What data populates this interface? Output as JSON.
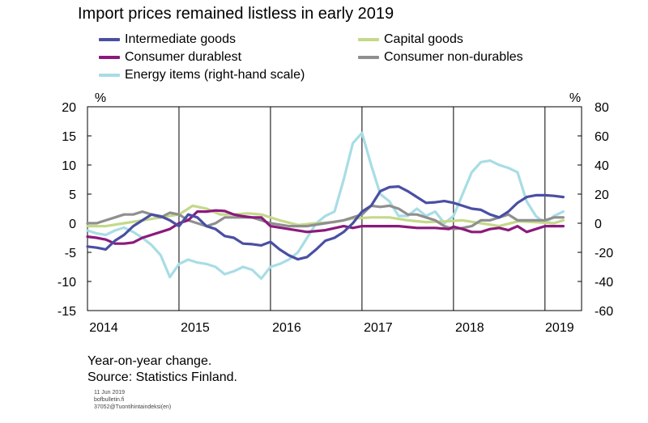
{
  "chart_data": {
    "type": "line",
    "title": "Import prices remained listless in early 2019",
    "left_axis": {
      "unit": "%",
      "range": [
        -15,
        20
      ],
      "ticks": [
        "20",
        "15",
        "10",
        "5",
        "0",
        "-5",
        "-10",
        "-15"
      ]
    },
    "right_axis": {
      "unit": "%",
      "range": [
        -60,
        80
      ],
      "ticks": [
        "80",
        "60",
        "40",
        "20",
        "0",
        "-20",
        "-40",
        "-60"
      ]
    },
    "x_range": [
      2014,
      2019.4
    ],
    "x_ticks": [
      "2014",
      "2015",
      "2016",
      "2017",
      "2018",
      "2019"
    ],
    "grid": "vertical lines at each year",
    "legend_position": "top, two columns",
    "series": [
      {
        "name": "Intermediate goods",
        "color": "#4a4fa3",
        "axis": "left",
        "x": [
          2014.0,
          2014.1,
          2014.2,
          2014.3,
          2014.4,
          2014.5,
          2014.6,
          2014.7,
          2014.8,
          2014.9,
          2015.0,
          2015.1,
          2015.2,
          2015.3,
          2015.4,
          2015.5,
          2015.6,
          2015.7,
          2015.8,
          2015.9,
          2016.0,
          2016.1,
          2016.2,
          2016.3,
          2016.4,
          2016.5,
          2016.6,
          2016.7,
          2016.8,
          2016.9,
          2017.0,
          2017.1,
          2017.2,
          2017.3,
          2017.4,
          2017.5,
          2017.6,
          2017.7,
          2017.8,
          2017.9,
          2018.0,
          2018.1,
          2018.2,
          2018.3,
          2018.4,
          2018.5,
          2018.6,
          2018.7,
          2018.8,
          2018.9,
          2019.0,
          2019.1,
          2019.2
        ],
        "y": [
          -4,
          -4.2,
          -4.5,
          -3,
          -2,
          -0.5,
          0.5,
          1.5,
          1.2,
          0.5,
          -0.5,
          1.5,
          1,
          -0.5,
          -1,
          -2.2,
          -2.5,
          -3.5,
          -3.6,
          -3.8,
          -3.2,
          -4.5,
          -5.5,
          -6.2,
          -5.8,
          -4.5,
          -3,
          -2.5,
          -1.5,
          0,
          2,
          3,
          5.5,
          6.2,
          6.3,
          5.5,
          4.5,
          3.5,
          3.6,
          3.8,
          3.5,
          3,
          2.5,
          2.3,
          1.5,
          1,
          2,
          3.5,
          4.5,
          4.8,
          4.8,
          4.7,
          4.5
        ]
      },
      {
        "name": "Capital goods",
        "color": "#c4d98a",
        "axis": "left",
        "x": [
          2014.0,
          2014.2,
          2014.4,
          2014.6,
          2014.8,
          2015.0,
          2015.15,
          2015.3,
          2015.45,
          2015.6,
          2015.75,
          2015.9,
          2016.1,
          2016.3,
          2016.5,
          2016.7,
          2016.9,
          2017.1,
          2017.3,
          2017.5,
          2017.7,
          2017.9,
          2018.1,
          2018.3,
          2018.5,
          2018.7,
          2018.9,
          2019.1,
          2019.2
        ],
        "y": [
          -0.5,
          -0.5,
          0,
          0.5,
          1,
          1.5,
          3,
          2.5,
          1.5,
          1.5,
          1.7,
          1.5,
          0.5,
          -0.3,
          0,
          0.2,
          0.8,
          1,
          1,
          0.5,
          0.2,
          0.3,
          0.5,
          0,
          -0.5,
          0.3,
          0.2,
          0,
          0.5
        ]
      },
      {
        "name": "Consumer durablest",
        "color": "#8b1a7b",
        "axis": "left",
        "x": [
          2014.0,
          2014.1,
          2014.2,
          2014.3,
          2014.4,
          2014.5,
          2014.6,
          2014.7,
          2014.8,
          2014.9,
          2015.0,
          2015.1,
          2015.2,
          2015.3,
          2015.4,
          2015.5,
          2015.6,
          2015.7,
          2015.8,
          2015.9,
          2016.0,
          2016.2,
          2016.4,
          2016.6,
          2016.8,
          2016.9,
          2017.0,
          2017.2,
          2017.4,
          2017.6,
          2017.8,
          2017.95,
          2018.0,
          2018.1,
          2018.2,
          2018.3,
          2018.4,
          2018.5,
          2018.6,
          2018.7,
          2018.8,
          2018.9,
          2019.0,
          2019.1,
          2019.2
        ],
        "y": [
          -2.3,
          -2.5,
          -2.8,
          -3.5,
          -3.5,
          -3.3,
          -2.5,
          -2,
          -1.5,
          -1,
          0,
          0.5,
          2,
          2,
          2.2,
          2.1,
          1.5,
          1.2,
          1,
          1,
          -0.5,
          -1,
          -1.5,
          -1.2,
          -0.5,
          -0.8,
          -0.5,
          -0.5,
          -0.5,
          -0.8,
          -0.8,
          -1,
          -0.6,
          -1,
          -1.5,
          -1.5,
          -1,
          -0.8,
          -1.2,
          -0.5,
          -1.5,
          -1,
          -0.5,
          -0.5,
          -0.5
        ]
      },
      {
        "name": "Consumer non-durables",
        "color": "#8f8f8f",
        "axis": "left",
        "x": [
          2014.0,
          2014.1,
          2014.2,
          2014.3,
          2014.4,
          2014.5,
          2014.6,
          2014.7,
          2014.8,
          2014.9,
          2015.0,
          2015.1,
          2015.2,
          2015.3,
          2015.4,
          2015.5,
          2015.6,
          2015.7,
          2015.8,
          2015.9,
          2016.0,
          2016.2,
          2016.4,
          2016.6,
          2016.8,
          2017.0,
          2017.1,
          2017.2,
          2017.3,
          2017.4,
          2017.5,
          2017.6,
          2017.7,
          2017.8,
          2017.9,
          2018.0,
          2018.1,
          2018.2,
          2018.3,
          2018.4,
          2018.5,
          2018.6,
          2018.7,
          2018.8,
          2018.9,
          2019.0,
          2019.1,
          2019.2
        ],
        "y": [
          0,
          0,
          0.5,
          1,
          1.5,
          1.5,
          2,
          1.5,
          1,
          1.8,
          1.5,
          0.5,
          0,
          -0.5,
          0,
          1,
          1,
          1,
          1,
          0.5,
          0,
          -0.5,
          -0.5,
          0,
          0.5,
          1.5,
          3,
          2.8,
          3,
          2.5,
          1.5,
          1.5,
          1,
          0.5,
          -0.5,
          -1,
          -0.8,
          -0.5,
          0.5,
          0.5,
          1,
          1.5,
          0.5,
          0.5,
          0.5,
          0.5,
          1,
          1
        ]
      },
      {
        "name": "Energy items (right-hand scale)",
        "color": "#a8dde5",
        "axis": "right",
        "x": [
          2014.0,
          2014.1,
          2014.2,
          2014.3,
          2014.4,
          2014.5,
          2014.6,
          2014.7,
          2014.8,
          2014.9,
          2015.0,
          2015.1,
          2015.2,
          2015.3,
          2015.4,
          2015.5,
          2015.6,
          2015.7,
          2015.8,
          2015.9,
          2016.0,
          2016.1,
          2016.2,
          2016.3,
          2016.4,
          2016.5,
          2016.6,
          2016.7,
          2016.8,
          2016.9,
          2017.0,
          2017.1,
          2017.2,
          2017.3,
          2017.4,
          2017.5,
          2017.6,
          2017.7,
          2017.8,
          2017.9,
          2018.0,
          2018.1,
          2018.2,
          2018.3,
          2018.4,
          2018.5,
          2018.6,
          2018.7,
          2018.8,
          2018.9,
          2019.0,
          2019.1,
          2019.2
        ],
        "y": [
          -5,
          -7,
          -8,
          -5,
          -3,
          -6,
          -10,
          -15,
          -22,
          -37,
          -28,
          -25,
          -27,
          -28,
          -30,
          -35,
          -33,
          -30,
          -32,
          -38,
          -30,
          -28,
          -25,
          -20,
          -10,
          0,
          5,
          8,
          30,
          55,
          62,
          40,
          20,
          15,
          5,
          5,
          10,
          5,
          8,
          0,
          5,
          20,
          35,
          42,
          43,
          40,
          38,
          35,
          15,
          5,
          0,
          5,
          8
        ]
      }
    ]
  },
  "footnotes": {
    "line1": "Year-on-year change.",
    "line2": "Source: Statistics Finland."
  },
  "tiny_text": {
    "date": "11 Jun 2019",
    "site": "bofbulletin.fi",
    "id": "37052@Tuontihintaindeksi(en)"
  }
}
